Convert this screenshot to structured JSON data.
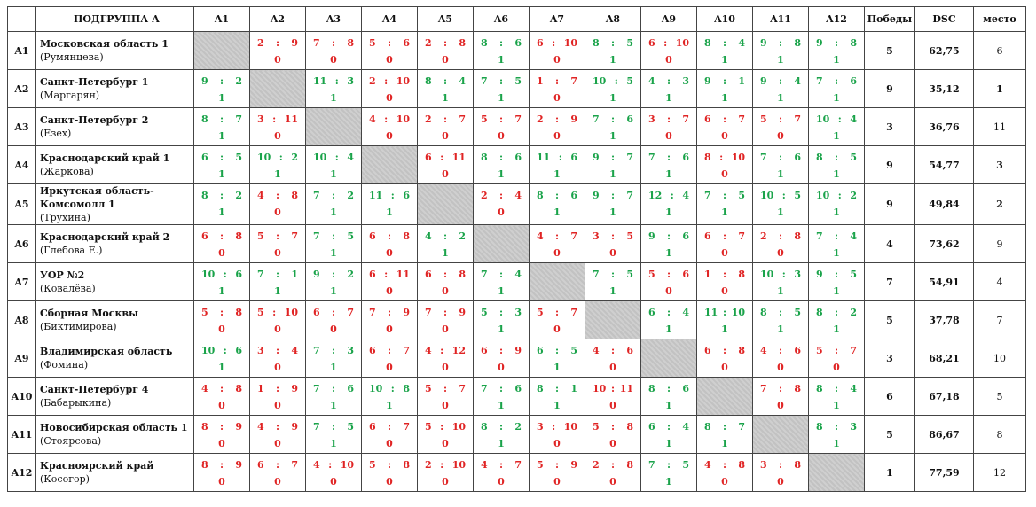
{
  "table": {
    "header": {
      "group": "ПОДГРУППА А",
      "columns": [
        "A1",
        "A2",
        "A3",
        "A4",
        "A5",
        "A6",
        "A7",
        "A8",
        "A9",
        "A10",
        "A11",
        "A12"
      ],
      "wins": "Победы",
      "dsc": "DSC",
      "place": "место"
    },
    "rows": [
      {
        "id": "A1",
        "team": "Московская область 1",
        "sub": "(Румянцева)",
        "wins": "5",
        "dsc": "62,75",
        "place": "6",
        "cells": [
          null,
          {
            "a": "2",
            "b": "9",
            "p": "0"
          },
          {
            "a": "7",
            "b": "8",
            "p": "0"
          },
          {
            "a": "5",
            "b": "6",
            "p": "0"
          },
          {
            "a": "2",
            "b": "8",
            "p": "0"
          },
          {
            "a": "8",
            "b": "6",
            "p": "1"
          },
          {
            "a": "6",
            "b": "10",
            "p": "0"
          },
          {
            "a": "8",
            "b": "5",
            "p": "1"
          },
          {
            "a": "6",
            "b": "10",
            "p": "0"
          },
          {
            "a": "8",
            "b": "4",
            "p": "1"
          },
          {
            "a": "9",
            "b": "8",
            "p": "1"
          },
          {
            "a": "9",
            "b": "8",
            "p": "1"
          }
        ]
      },
      {
        "id": "A2",
        "team": "Санкт-Петербург 1",
        "sub": "(Маргарян)",
        "wins": "9",
        "dsc": "35,12",
        "place": "1",
        "cells": [
          {
            "a": "9",
            "b": "2",
            "p": "1"
          },
          null,
          {
            "a": "11",
            "b": "3",
            "p": "1"
          },
          {
            "a": "2",
            "b": "10",
            "p": "0"
          },
          {
            "a": "8",
            "b": "4",
            "p": "1"
          },
          {
            "a": "7",
            "b": "5",
            "p": "1"
          },
          {
            "a": "1",
            "b": "7",
            "p": "0"
          },
          {
            "a": "10",
            "b": "5",
            "p": "1"
          },
          {
            "a": "4",
            "b": "3",
            "p": "1"
          },
          {
            "a": "9",
            "b": "1",
            "p": "1"
          },
          {
            "a": "9",
            "b": "4",
            "p": "1"
          },
          {
            "a": "7",
            "b": "6",
            "p": "1"
          }
        ]
      },
      {
        "id": "A3",
        "team": "Санкт-Петербург 2",
        "sub": "(Езех)",
        "wins": "3",
        "dsc": "36,76",
        "place": "11",
        "cells": [
          {
            "a": "8",
            "b": "7",
            "p": "1"
          },
          {
            "a": "3",
            "b": "11",
            "p": "0"
          },
          null,
          {
            "a": "4",
            "b": "10",
            "p": "0"
          },
          {
            "a": "2",
            "b": "7",
            "p": "0"
          },
          {
            "a": "5",
            "b": "7",
            "p": "0"
          },
          {
            "a": "2",
            "b": "9",
            "p": "0"
          },
          {
            "a": "7",
            "b": "6",
            "p": "1"
          },
          {
            "a": "3",
            "b": "7",
            "p": "0"
          },
          {
            "a": "6",
            "b": "7",
            "p": "0"
          },
          {
            "a": "5",
            "b": "7",
            "p": "0"
          },
          {
            "a": "10",
            "b": "4",
            "p": "1"
          }
        ]
      },
      {
        "id": "A4",
        "team": "Краснодарский край 1",
        "sub": "(Жаркова)",
        "wins": "9",
        "dsc": "54,77",
        "place": "3",
        "cells": [
          {
            "a": "6",
            "b": "5",
            "p": "1"
          },
          {
            "a": "10",
            "b": "2",
            "p": "1"
          },
          {
            "a": "10",
            "b": "4",
            "p": "1"
          },
          null,
          {
            "a": "6",
            "b": "11",
            "p": "0"
          },
          {
            "a": "8",
            "b": "6",
            "p": "1"
          },
          {
            "a": "11",
            "b": "6",
            "p": "1"
          },
          {
            "a": "9",
            "b": "7",
            "p": "1"
          },
          {
            "a": "7",
            "b": "6",
            "p": "1"
          },
          {
            "a": "8",
            "b": "10",
            "p": "0"
          },
          {
            "a": "7",
            "b": "6",
            "p": "1"
          },
          {
            "a": "8",
            "b": "5",
            "p": "1"
          }
        ]
      },
      {
        "id": "A5",
        "team": "Иркутская область-\nКомсомолл 1",
        "sub": "(Трухина)",
        "wins": "9",
        "dsc": "49,84",
        "place": "2",
        "cells": [
          {
            "a": "8",
            "b": "2",
            "p": "1"
          },
          {
            "a": "4",
            "b": "8",
            "p": "0"
          },
          {
            "a": "7",
            "b": "2",
            "p": "1"
          },
          {
            "a": "11",
            "b": "6",
            "p": "1"
          },
          null,
          {
            "a": "2",
            "b": "4",
            "p": "0"
          },
          {
            "a": "8",
            "b": "6",
            "p": "1"
          },
          {
            "a": "9",
            "b": "7",
            "p": "1"
          },
          {
            "a": "12",
            "b": "4",
            "p": "1"
          },
          {
            "a": "7",
            "b": "5",
            "p": "1"
          },
          {
            "a": "10",
            "b": "5",
            "p": "1"
          },
          {
            "a": "10",
            "b": "2",
            "p": "1"
          }
        ]
      },
      {
        "id": "A6",
        "team": "Краснодарский край 2",
        "sub": "(Глебова Е.)",
        "wins": "4",
        "dsc": "73,62",
        "place": "9",
        "cells": [
          {
            "a": "6",
            "b": "8",
            "p": "0"
          },
          {
            "a": "5",
            "b": "7",
            "p": "0"
          },
          {
            "a": "7",
            "b": "5",
            "p": "1"
          },
          {
            "a": "6",
            "b": "8",
            "p": "0"
          },
          {
            "a": "4",
            "b": "2",
            "p": "1"
          },
          null,
          {
            "a": "4",
            "b": "7",
            "p": "0"
          },
          {
            "a": "3",
            "b": "5",
            "p": "0"
          },
          {
            "a": "9",
            "b": "6",
            "p": "1"
          },
          {
            "a": "6",
            "b": "7",
            "p": "0"
          },
          {
            "a": "2",
            "b": "8",
            "p": "0"
          },
          {
            "a": "7",
            "b": "4",
            "p": "1"
          }
        ]
      },
      {
        "id": "A7",
        "team": "УОР №2",
        "sub": "(Ковалёва)",
        "wins": "7",
        "dsc": "54,91",
        "place": "4",
        "cells": [
          {
            "a": "10",
            "b": "6",
            "p": "1"
          },
          {
            "a": "7",
            "b": "1",
            "p": "1"
          },
          {
            "a": "9",
            "b": "2",
            "p": "1"
          },
          {
            "a": "6",
            "b": "11",
            "p": "0"
          },
          {
            "a": "6",
            "b": "8",
            "p": "0"
          },
          {
            "a": "7",
            "b": "4",
            "p": "1"
          },
          null,
          {
            "a": "7",
            "b": "5",
            "p": "1"
          },
          {
            "a": "5",
            "b": "6",
            "p": "0"
          },
          {
            "a": "1",
            "b": "8",
            "p": "0"
          },
          {
            "a": "10",
            "b": "3",
            "p": "1"
          },
          {
            "a": "9",
            "b": "5",
            "p": "1"
          }
        ]
      },
      {
        "id": "A8",
        "team": "Сборная Москвы",
        "sub": "(Биктимирова)",
        "wins": "5",
        "dsc": "37,78",
        "place": "7",
        "cells": [
          {
            "a": "5",
            "b": "8",
            "p": "0"
          },
          {
            "a": "5",
            "b": "10",
            "p": "0"
          },
          {
            "a": "6",
            "b": "7",
            "p": "0"
          },
          {
            "a": "7",
            "b": "9",
            "p": "0"
          },
          {
            "a": "7",
            "b": "9",
            "p": "0"
          },
          {
            "a": "5",
            "b": "3",
            "p": "1"
          },
          {
            "a": "5",
            "b": "7",
            "p": "0"
          },
          null,
          {
            "a": "6",
            "b": "4",
            "p": "1"
          },
          {
            "a": "11",
            "b": "10",
            "p": "1"
          },
          {
            "a": "8",
            "b": "5",
            "p": "1"
          },
          {
            "a": "8",
            "b": "2",
            "p": "1"
          }
        ]
      },
      {
        "id": "A9",
        "team": "Владимирская область",
        "sub": "(Фомина)",
        "wins": "3",
        "dsc": "68,21",
        "place": "10",
        "cells": [
          {
            "a": "10",
            "b": "6",
            "p": "1"
          },
          {
            "a": "3",
            "b": "4",
            "p": "0"
          },
          {
            "a": "7",
            "b": "3",
            "p": "1"
          },
          {
            "a": "6",
            "b": "7",
            "p": "0"
          },
          {
            "a": "4",
            "b": "12",
            "p": "0"
          },
          {
            "a": "6",
            "b": "9",
            "p": "0"
          },
          {
            "a": "6",
            "b": "5",
            "p": "1"
          },
          {
            "a": "4",
            "b": "6",
            "p": "0"
          },
          null,
          {
            "a": "6",
            "b": "8",
            "p": "0"
          },
          {
            "a": "4",
            "b": "6",
            "p": "0"
          },
          {
            "a": "5",
            "b": "7",
            "p": "0"
          }
        ]
      },
      {
        "id": "A10",
        "team": "Санкт-Петербург 4",
        "sub": "(Бабарыкина)",
        "wins": "6",
        "dsc": "67,18",
        "place": "5",
        "cells": [
          {
            "a": "4",
            "b": "8",
            "p": "0"
          },
          {
            "a": "1",
            "b": "9",
            "p": "0"
          },
          {
            "a": "7",
            "b": "6",
            "p": "1"
          },
          {
            "a": "10",
            "b": "8",
            "p": "1"
          },
          {
            "a": "5",
            "b": "7",
            "p": "0"
          },
          {
            "a": "7",
            "b": "6",
            "p": "1"
          },
          {
            "a": "8",
            "b": "1",
            "p": "1"
          },
          {
            "a": "10",
            "b": "11",
            "p": "0"
          },
          {
            "a": "8",
            "b": "6",
            "p": "1"
          },
          null,
          {
            "a": "7",
            "b": "8",
            "p": "0"
          },
          {
            "a": "8",
            "b": "4",
            "p": "1"
          }
        ]
      },
      {
        "id": "A11",
        "team": "Новосибирская область 1",
        "sub": "(Стоярсова)",
        "wins": "5",
        "dsc": "86,67",
        "place": "8",
        "cells": [
          {
            "a": "8",
            "b": "9",
            "p": "0"
          },
          {
            "a": "4",
            "b": "9",
            "p": "0"
          },
          {
            "a": "7",
            "b": "5",
            "p": "1"
          },
          {
            "a": "6",
            "b": "7",
            "p": "0"
          },
          {
            "a": "5",
            "b": "10",
            "p": "0"
          },
          {
            "a": "8",
            "b": "2",
            "p": "1"
          },
          {
            "a": "3",
            "b": "10",
            "p": "0"
          },
          {
            "a": "5",
            "b": "8",
            "p": "0"
          },
          {
            "a": "6",
            "b": "4",
            "p": "1"
          },
          {
            "a": "8",
            "b": "7",
            "p": "1"
          },
          null,
          {
            "a": "8",
            "b": "3",
            "p": "1"
          }
        ]
      },
      {
        "id": "A12",
        "team": "Красноярский край",
        "sub": "(Косогор)",
        "wins": "1",
        "dsc": "77,59",
        "place": "12",
        "cells": [
          {
            "a": "8",
            "b": "9",
            "p": "0"
          },
          {
            "a": "6",
            "b": "7",
            "p": "0"
          },
          {
            "a": "4",
            "b": "10",
            "p": "0"
          },
          {
            "a": "5",
            "b": "8",
            "p": "0"
          },
          {
            "a": "2",
            "b": "10",
            "p": "0"
          },
          {
            "a": "4",
            "b": "7",
            "p": "0"
          },
          {
            "a": "5",
            "b": "9",
            "p": "0"
          },
          {
            "a": "2",
            "b": "8",
            "p": "0"
          },
          {
            "a": "7",
            "b": "5",
            "p": "1"
          },
          {
            "a": "4",
            "b": "8",
            "p": "0"
          },
          {
            "a": "3",
            "b": "8",
            "p": "0"
          },
          null
        ]
      }
    ],
    "colors": {
      "win": "#1aa34a",
      "loss": "#e02424",
      "diagonal": "#c8c8c8",
      "border": "#444444"
    }
  }
}
